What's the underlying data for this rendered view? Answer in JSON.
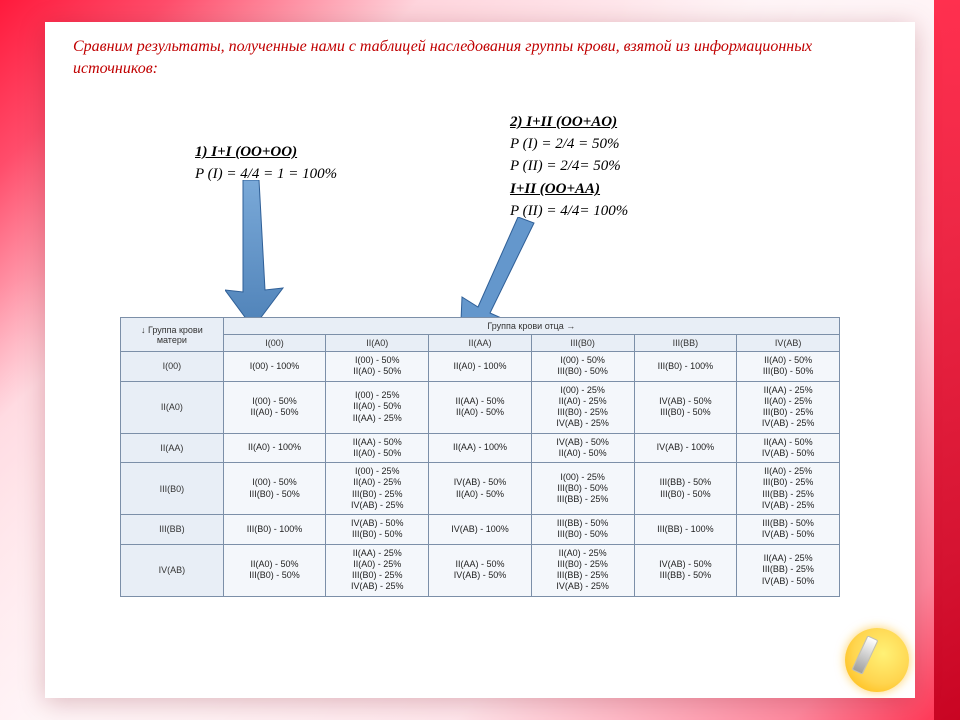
{
  "intro": "Сравним результаты, полученные нами с таблицей наследования группы крови, взятой из информационных источников:",
  "calc1": {
    "heading": "1) I+I (OO+OO)",
    "lines": [
      "P (I) = 4/4 = 1 = 100%"
    ]
  },
  "calc2": {
    "heading": "2) I+II (OO+AO)",
    "lines": [
      "P (I) = 2/4 = 50%",
      "P (II) = 2/4= 50%"
    ],
    "heading2": "I+II (OO+AA)",
    "lines2": [
      "P (II) = 4/4= 100%"
    ]
  },
  "arrows": {
    "color": "#5b8bbf",
    "stroke": "#2f5f97"
  },
  "table": {
    "header_top": "Группа крови отца →",
    "row_header_label": "↓ Группа крови матери",
    "fathers": [
      "I(00)",
      "II(A0)",
      "II(AA)",
      "III(B0)",
      "III(BB)",
      "IV(AB)"
    ],
    "mothers": [
      "I(00)",
      "II(A0)",
      "II(AA)",
      "III(B0)",
      "III(BB)",
      "IV(AB)"
    ],
    "cells": [
      [
        [
          "I(00) - 100%"
        ],
        [
          "I(00) - 50%",
          "II(A0) - 50%"
        ],
        [
          "II(A0) - 100%"
        ],
        [
          "I(00) - 50%",
          "III(B0) - 50%"
        ],
        [
          "III(B0) - 100%"
        ],
        [
          "II(A0) - 50%",
          "III(B0) - 50%"
        ]
      ],
      [
        [
          "I(00) - 50%",
          "II(A0) - 50%"
        ],
        [
          "I(00) - 25%",
          "II(A0) - 50%",
          "II(AA) - 25%"
        ],
        [
          "II(AA) - 50%",
          "II(A0) - 50%"
        ],
        [
          "I(00) - 25%",
          "II(A0) - 25%",
          "III(B0) - 25%",
          "IV(AB) - 25%"
        ],
        [
          "IV(AB) - 50%",
          "III(B0) - 50%"
        ],
        [
          "II(AA) - 25%",
          "II(A0) - 25%",
          "III(B0) - 25%",
          "IV(AB) - 25%"
        ]
      ],
      [
        [
          "II(A0) - 100%"
        ],
        [
          "II(AA) - 50%",
          "II(A0) - 50%"
        ],
        [
          "II(AA) - 100%"
        ],
        [
          "IV(AB) - 50%",
          "II(A0) - 50%"
        ],
        [
          "IV(AB) - 100%"
        ],
        [
          "II(AA) - 50%",
          "IV(AB) - 50%"
        ]
      ],
      [
        [
          "I(00) - 50%",
          "III(B0) - 50%"
        ],
        [
          "I(00) - 25%",
          "II(A0) - 25%",
          "III(B0) - 25%",
          "IV(AB) - 25%"
        ],
        [
          "IV(AB) - 50%",
          "II(A0) - 50%"
        ],
        [
          "I(00) - 25%",
          "III(B0) - 50%",
          "III(BB) - 25%"
        ],
        [
          "III(BB) - 50%",
          "III(B0) - 50%"
        ],
        [
          "II(A0) - 25%",
          "III(B0) - 25%",
          "III(BB) - 25%",
          "IV(AB) - 25%"
        ]
      ],
      [
        [
          "III(B0) - 100%"
        ],
        [
          "IV(AB) - 50%",
          "III(B0) - 50%"
        ],
        [
          "IV(AB) - 100%"
        ],
        [
          "III(BB) - 50%",
          "III(B0) - 50%"
        ],
        [
          "III(BB) - 100%"
        ],
        [
          "III(BB) - 50%",
          "IV(AB) - 50%"
        ]
      ],
      [
        [
          "II(A0) - 50%",
          "III(B0) - 50%"
        ],
        [
          "II(AA) - 25%",
          "II(A0) - 25%",
          "III(B0) - 25%",
          "IV(AB) - 25%"
        ],
        [
          "II(AA) - 50%",
          "IV(AB) - 50%"
        ],
        [
          "II(A0) - 25%",
          "III(B0) - 25%",
          "III(BB) - 25%",
          "IV(AB) - 25%"
        ],
        [
          "IV(AB) - 50%",
          "III(BB) - 50%"
        ],
        [
          "II(AA) - 25%",
          "III(BB) - 25%",
          "IV(AB) - 50%"
        ]
      ]
    ],
    "colors": {
      "border": "#7c8fa8",
      "header_bg": "#e8eef6",
      "cell_bg": "#f4f7fb"
    }
  }
}
